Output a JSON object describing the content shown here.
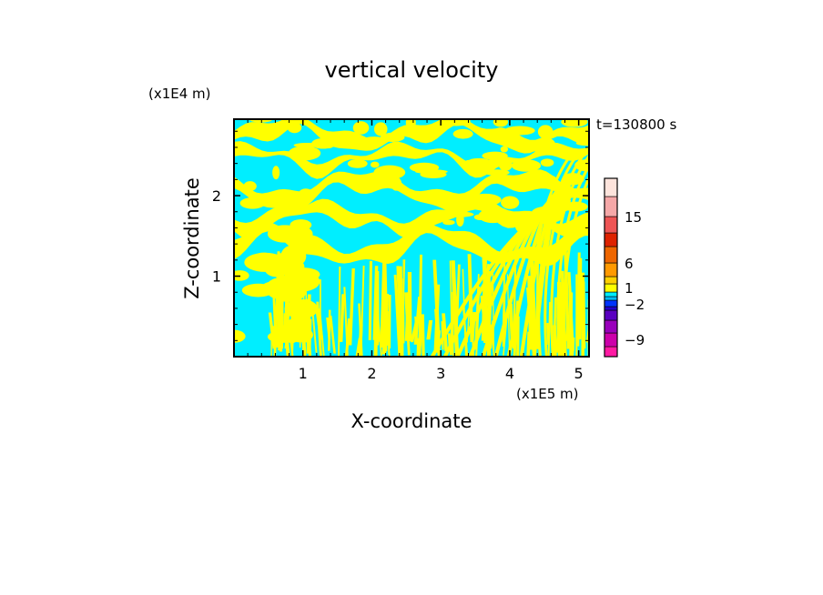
{
  "chart_data": {
    "type": "heatmap",
    "title": "vertical velocity",
    "xlabel": "X-coordinate",
    "ylabel": "Z-coordinate",
    "x_unit": "(x1E5 m)",
    "y_unit": "(x1E4 m)",
    "time_label": "t=130800 s",
    "xlim": [
      0,
      5.15
    ],
    "ylim": [
      0,
      2.95
    ],
    "x_ticks": [
      {
        "value": 1,
        "label": "1"
      },
      {
        "value": 2,
        "label": "2"
      },
      {
        "value": 3,
        "label": "3"
      },
      {
        "value": 4,
        "label": "4"
      },
      {
        "value": 5,
        "label": "5"
      }
    ],
    "y_ticks": [
      {
        "value": 1,
        "label": "1"
      },
      {
        "value": 2,
        "label": "2"
      }
    ],
    "field_colors": {
      "positive_weak": "#ffff00",
      "negative_weak": "#00eeff"
    },
    "colorbar": {
      "levels": [
        {
          "color": "#ff1aa3"
        },
        {
          "color": "#cc00aa"
        },
        {
          "color": "#9900bb"
        },
        {
          "color": "#5a00c0"
        },
        {
          "color": "#2200cc"
        },
        {
          "color": "#0033ff"
        },
        {
          "color": "#00bbff"
        },
        {
          "color": "#00eeff"
        },
        {
          "color": "#ffff00"
        },
        {
          "color": "#ffd000"
        },
        {
          "color": "#ff9900"
        },
        {
          "color": "#ee6600"
        },
        {
          "color": "#dd2200"
        },
        {
          "color": "#ee5555"
        },
        {
          "color": "#f5a8a8"
        },
        {
          "color": "#fde4dc"
        }
      ],
      "labels": [
        {
          "text": "15",
          "value": 15
        },
        {
          "text": "6",
          "value": 6
        },
        {
          "text": "1",
          "value": 1
        },
        {
          "text": "−2",
          "value": -2
        },
        {
          "text": "−9",
          "value": -9
        }
      ]
    }
  }
}
